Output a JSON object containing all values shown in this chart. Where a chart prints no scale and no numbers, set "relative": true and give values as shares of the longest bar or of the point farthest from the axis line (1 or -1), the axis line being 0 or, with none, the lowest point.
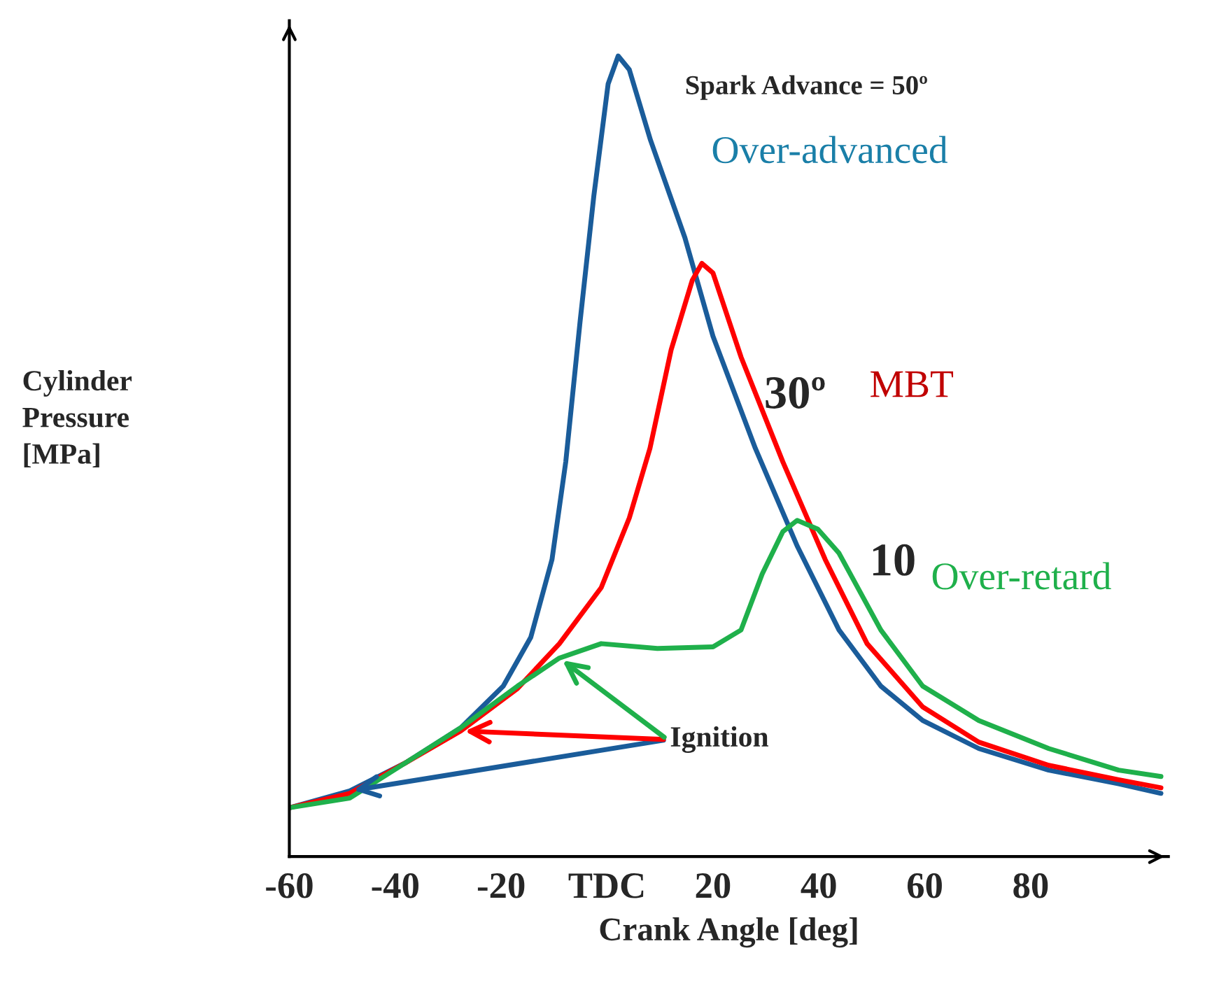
{
  "chart_data": {
    "type": "line",
    "relative": true,
    "xlabel": "Crank Angle [deg]",
    "ylabel": "Cylinder\nPressure\n[MPa]",
    "xlim": [
      -60,
      106
    ],
    "xticks": [
      -60,
      -40,
      -20,
      {
        "value": 0,
        "label": "TDC"
      },
      20,
      40,
      60,
      80
    ],
    "line_style": "solid",
    "annotations": [
      "Spark Advance = 50º",
      "30º",
      "10",
      "Ignition"
    ],
    "series": [
      {
        "name": "Over-advanced",
        "color": "#1a5c9a",
        "x": [
          -60,
          -48.6,
          -38.1,
          -27.6,
          -19.6,
          -14.4,
          -10.4,
          -7.8,
          -5.1,
          -2.5,
          0.2,
          2.1,
          4.2,
          8.2,
          14.7,
          20.0,
          28.0,
          35.9,
          43.8,
          51.7,
          59.6,
          70.2,
          83.4,
          96.6,
          104.6
        ],
        "values": [
          0.061,
          0.082,
          0.117,
          0.161,
          0.213,
          0.274,
          0.371,
          0.493,
          0.668,
          0.825,
          0.965,
          1.0,
          0.983,
          0.895,
          0.773,
          0.65,
          0.51,
          0.388,
          0.283,
          0.213,
          0.17,
          0.135,
          0.108,
          0.091,
          0.079
        ]
      },
      {
        "name": "MBT",
        "color": "#ff0000",
        "x": [
          -60,
          -48.6,
          -38.1,
          -27.6,
          -16.9,
          -9.0,
          -1.1,
          4.2,
          8.1,
          12.1,
          16.1,
          17.9,
          20.0,
          25.3,
          33.2,
          41.2,
          49.1,
          59.6,
          70.2,
          83.4,
          96.6,
          104.6
        ],
        "values": [
          0.061,
          0.079,
          0.117,
          0.157,
          0.21,
          0.266,
          0.336,
          0.423,
          0.51,
          0.633,
          0.72,
          0.741,
          0.729,
          0.624,
          0.493,
          0.371,
          0.266,
          0.187,
          0.143,
          0.114,
          0.096,
          0.086
        ]
      },
      {
        "name": "Over-retard",
        "color": "#1fb04b",
        "x": [
          -60,
          -48.6,
          -38.1,
          -27.6,
          -16.9,
          -9.0,
          -1.1,
          9.5,
          20.0,
          25.3,
          29.3,
          33.2,
          35.9,
          39.8,
          43.8,
          51.7,
          59.6,
          70.2,
          83.4,
          96.6,
          104.6
        ],
        "values": [
          0.061,
          0.073,
          0.117,
          0.161,
          0.213,
          0.248,
          0.266,
          0.26,
          0.262,
          0.283,
          0.353,
          0.406,
          0.42,
          0.409,
          0.379,
          0.283,
          0.213,
          0.17,
          0.135,
          0.108,
          0.1
        ]
      }
    ]
  }
}
